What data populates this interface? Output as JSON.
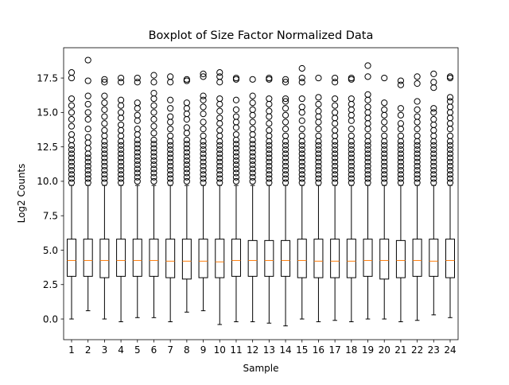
{
  "chart_data": {
    "type": "boxplot",
    "title": "Boxplot of Size Factor Normalized Data",
    "xlabel": "Sample",
    "ylabel": "Log2 Counts",
    "ylim": [
      -1.5,
      19.7
    ],
    "yticks": [
      0.0,
      2.5,
      5.0,
      7.5,
      10.0,
      12.5,
      15.0,
      17.5
    ],
    "ytick_labels": [
      "0.0",
      "2.5",
      "5.0",
      "7.5",
      "10.0",
      "12.5",
      "15.0",
      "17.5"
    ],
    "grid": false,
    "colors": {
      "box": "#000000",
      "median": "#ff7f0e",
      "flier": "#000000",
      "background": "#ffffff"
    },
    "categories": [
      "1",
      "2",
      "3",
      "4",
      "5",
      "6",
      "7",
      "8",
      "9",
      "10",
      "11",
      "12",
      "13",
      "14",
      "15",
      "16",
      "17",
      "18",
      "19",
      "20",
      "21",
      "22",
      "23",
      "24"
    ],
    "boxes": [
      {
        "whisker_low": 0.0,
        "q1": 3.1,
        "median": 4.25,
        "q3": 5.8,
        "whisker_high": 9.7,
        "fliers": [
          9.9,
          10.2,
          10.5,
          10.8,
          11.1,
          11.4,
          11.7,
          12.0,
          12.3,
          12.6,
          13.0,
          13.4,
          14.0,
          14.5,
          15.0,
          15.5,
          16.0,
          17.5,
          17.9
        ]
      },
      {
        "whisker_low": 0.6,
        "q1": 3.1,
        "median": 4.25,
        "q3": 5.8,
        "whisker_high": 9.7,
        "fliers": [
          9.9,
          10.2,
          10.5,
          10.8,
          11.1,
          11.4,
          11.7,
          12.0,
          12.4,
          12.8,
          13.2,
          13.8,
          14.5,
          15.0,
          15.6,
          16.2,
          17.3,
          18.8
        ]
      },
      {
        "whisker_low": 0.0,
        "q1": 3.0,
        "median": 4.25,
        "q3": 5.8,
        "whisker_high": 9.7,
        "fliers": [
          9.9,
          10.2,
          10.5,
          10.8,
          11.1,
          11.4,
          11.7,
          12.0,
          12.3,
          12.6,
          12.9,
          13.3,
          13.7,
          14.2,
          14.7,
          15.2,
          15.7,
          16.2,
          17.2,
          17.4
        ]
      },
      {
        "whisker_low": -0.2,
        "q1": 3.1,
        "median": 4.25,
        "q3": 5.8,
        "whisker_high": 9.7,
        "fliers": [
          9.9,
          10.2,
          10.5,
          10.8,
          11.1,
          11.4,
          11.7,
          12.0,
          12.3,
          12.6,
          12.9,
          13.3,
          13.7,
          14.1,
          14.6,
          15.0,
          15.5,
          15.9,
          17.2,
          17.5
        ]
      },
      {
        "whisker_low": 0.1,
        "q1": 3.1,
        "median": 4.25,
        "q3": 5.8,
        "whisker_high": 9.7,
        "fliers": [
          10.0,
          10.3,
          10.6,
          10.9,
          11.2,
          11.5,
          11.8,
          12.1,
          12.4,
          12.7,
          13.0,
          13.4,
          13.8,
          14.4,
          14.8,
          15.3,
          15.7,
          17.2,
          17.5
        ]
      },
      {
        "whisker_low": 0.1,
        "q1": 3.1,
        "median": 4.25,
        "q3": 5.8,
        "whisker_high": 9.7,
        "fliers": [
          10.0,
          10.3,
          10.6,
          10.9,
          11.2,
          11.5,
          11.8,
          12.1,
          12.4,
          12.7,
          13.0,
          13.5,
          14.0,
          14.5,
          15.0,
          15.5,
          16.0,
          16.4,
          17.2,
          17.7
        ]
      },
      {
        "whisker_low": -0.2,
        "q1": 3.0,
        "median": 4.2,
        "q3": 5.8,
        "whisker_high": 9.7,
        "fliers": [
          9.9,
          10.2,
          10.5,
          10.8,
          11.1,
          11.4,
          11.7,
          12.0,
          12.3,
          12.6,
          12.9,
          13.3,
          13.8,
          14.3,
          14.7,
          15.3,
          15.9,
          17.2,
          17.6
        ]
      },
      {
        "whisker_low": 0.5,
        "q1": 2.9,
        "median": 4.2,
        "q3": 5.8,
        "whisker_high": 9.7,
        "fliers": [
          10.0,
          10.3,
          10.6,
          10.9,
          11.2,
          11.5,
          11.8,
          12.1,
          12.4,
          12.7,
          13.0,
          13.5,
          13.9,
          14.5,
          14.9,
          15.3,
          15.7,
          17.3,
          17.4
        ]
      },
      {
        "whisker_low": 0.6,
        "q1": 3.0,
        "median": 4.2,
        "q3": 5.8,
        "whisker_high": 9.7,
        "fliers": [
          9.9,
          10.2,
          10.5,
          10.8,
          11.1,
          11.4,
          11.7,
          12.0,
          12.3,
          12.6,
          12.9,
          13.3,
          13.8,
          14.3,
          14.9,
          15.4,
          15.9,
          16.2,
          17.6,
          17.8
        ]
      },
      {
        "whisker_low": -0.4,
        "q1": 3.0,
        "median": 4.15,
        "q3": 5.8,
        "whisker_high": 9.7,
        "fliers": [
          9.9,
          10.2,
          10.5,
          10.8,
          11.1,
          11.4,
          11.7,
          12.0,
          12.3,
          12.6,
          12.9,
          13.3,
          13.7,
          14.2,
          14.6,
          15.1,
          15.6,
          16.0,
          17.2,
          17.6,
          17.9
        ]
      },
      {
        "whisker_low": -0.2,
        "q1": 3.1,
        "median": 4.25,
        "q3": 5.8,
        "whisker_high": 9.7,
        "fliers": [
          10.0,
          10.3,
          10.6,
          10.9,
          11.2,
          11.5,
          11.8,
          12.1,
          12.4,
          12.7,
          13.0,
          13.4,
          13.9,
          14.3,
          14.7,
          15.2,
          15.9,
          17.4,
          17.5
        ]
      },
      {
        "whisker_low": -0.2,
        "q1": 3.1,
        "median": 4.25,
        "q3": 5.7,
        "whisker_high": 9.7,
        "fliers": [
          10.0,
          10.3,
          10.6,
          10.9,
          11.2,
          11.5,
          11.8,
          12.1,
          12.4,
          12.7,
          13.0,
          13.4,
          13.8,
          14.3,
          14.8,
          15.2,
          15.7,
          16.2,
          17.4
        ]
      },
      {
        "whisker_low": -0.3,
        "q1": 3.1,
        "median": 4.25,
        "q3": 5.7,
        "whisker_high": 9.7,
        "fliers": [
          9.9,
          10.2,
          10.5,
          10.8,
          11.1,
          11.4,
          11.7,
          12.0,
          12.3,
          12.6,
          12.9,
          13.3,
          13.7,
          14.2,
          14.7,
          15.1,
          15.6,
          16.0,
          17.4,
          17.5
        ]
      },
      {
        "whisker_low": -0.5,
        "q1": 3.1,
        "median": 4.25,
        "q3": 5.7,
        "whisker_high": 9.7,
        "fliers": [
          9.9,
          10.2,
          10.5,
          10.8,
          11.1,
          11.4,
          11.7,
          12.0,
          12.3,
          12.6,
          12.9,
          13.3,
          13.8,
          14.3,
          14.8,
          15.3,
          15.8,
          16.0,
          17.2,
          17.4
        ]
      },
      {
        "whisker_low": 0.0,
        "q1": 3.0,
        "median": 4.25,
        "q3": 5.8,
        "whisker_high": 9.7,
        "fliers": [
          9.9,
          10.2,
          10.5,
          10.8,
          11.1,
          11.4,
          11.7,
          12.0,
          12.3,
          12.6,
          12.9,
          13.3,
          13.8,
          14.4,
          15.0,
          15.4,
          16.0,
          17.2,
          17.5,
          18.2
        ]
      },
      {
        "whisker_low": -0.2,
        "q1": 3.0,
        "median": 4.2,
        "q3": 5.8,
        "whisker_high": 9.7,
        "fliers": [
          9.9,
          10.2,
          10.5,
          10.8,
          11.1,
          11.4,
          11.7,
          12.0,
          12.3,
          12.6,
          12.9,
          13.3,
          13.8,
          14.3,
          14.7,
          15.1,
          15.6,
          16.1,
          17.5
        ]
      },
      {
        "whisker_low": -0.1,
        "q1": 3.0,
        "median": 4.2,
        "q3": 5.8,
        "whisker_high": 9.7,
        "fliers": [
          9.9,
          10.2,
          10.5,
          10.8,
          11.1,
          11.4,
          11.7,
          12.0,
          12.3,
          12.6,
          12.9,
          13.3,
          13.7,
          14.2,
          14.6,
          15.0,
          15.5,
          16.0,
          17.2,
          17.5
        ]
      },
      {
        "whisker_low": -0.2,
        "q1": 3.0,
        "median": 4.2,
        "q3": 5.8,
        "whisker_high": 9.7,
        "fliers": [
          9.9,
          10.2,
          10.5,
          10.8,
          11.1,
          11.4,
          11.7,
          12.0,
          12.3,
          12.6,
          12.9,
          13.3,
          13.8,
          14.4,
          14.8,
          15.2,
          15.6,
          16.0,
          17.4,
          17.5
        ]
      },
      {
        "whisker_low": 0.0,
        "q1": 3.1,
        "median": 4.25,
        "q3": 5.8,
        "whisker_high": 9.7,
        "fliers": [
          9.9,
          10.2,
          10.5,
          10.8,
          11.1,
          11.4,
          11.7,
          12.0,
          12.3,
          12.6,
          12.9,
          13.3,
          13.8,
          14.2,
          14.6,
          15.0,
          15.4,
          15.9,
          16.3,
          17.6,
          18.4
        ]
      },
      {
        "whisker_low": 0.0,
        "q1": 2.9,
        "median": 4.25,
        "q3": 5.8,
        "whisker_high": 9.7,
        "fliers": [
          9.9,
          10.2,
          10.5,
          10.8,
          11.1,
          11.4,
          11.7,
          12.0,
          12.3,
          12.6,
          12.9,
          13.3,
          13.8,
          14.3,
          14.8,
          15.2,
          15.7,
          17.5
        ]
      },
      {
        "whisker_low": -0.2,
        "q1": 3.0,
        "median": 4.25,
        "q3": 5.7,
        "whisker_high": 9.7,
        "fliers": [
          9.9,
          10.2,
          10.5,
          10.8,
          11.1,
          11.4,
          11.7,
          12.0,
          12.3,
          12.6,
          12.9,
          13.3,
          13.8,
          14.2,
          14.8,
          15.3,
          17.0,
          17.3
        ]
      },
      {
        "whisker_low": -0.1,
        "q1": 3.1,
        "median": 4.25,
        "q3": 5.8,
        "whisker_high": 9.7,
        "fliers": [
          9.9,
          10.2,
          10.5,
          10.8,
          11.1,
          11.4,
          11.7,
          12.0,
          12.3,
          12.6,
          12.9,
          13.3,
          13.8,
          14.3,
          14.7,
          15.2,
          15.8,
          17.1,
          17.6
        ]
      },
      {
        "whisker_low": 0.3,
        "q1": 3.1,
        "median": 4.2,
        "q3": 5.8,
        "whisker_high": 9.7,
        "fliers": [
          9.9,
          10.2,
          10.5,
          10.8,
          11.1,
          11.4,
          11.7,
          12.0,
          12.3,
          12.6,
          12.9,
          13.3,
          13.7,
          14.1,
          14.5,
          15.0,
          15.3,
          16.8,
          17.2,
          17.8
        ]
      },
      {
        "whisker_low": 0.1,
        "q1": 3.0,
        "median": 4.25,
        "q3": 5.8,
        "whisker_high": 9.7,
        "fliers": [
          9.9,
          10.2,
          10.5,
          10.8,
          11.1,
          11.4,
          11.7,
          12.0,
          12.3,
          12.6,
          12.9,
          13.3,
          13.8,
          14.2,
          14.6,
          15.0,
          15.4,
          15.8,
          16.1,
          17.5,
          17.6
        ]
      }
    ]
  }
}
